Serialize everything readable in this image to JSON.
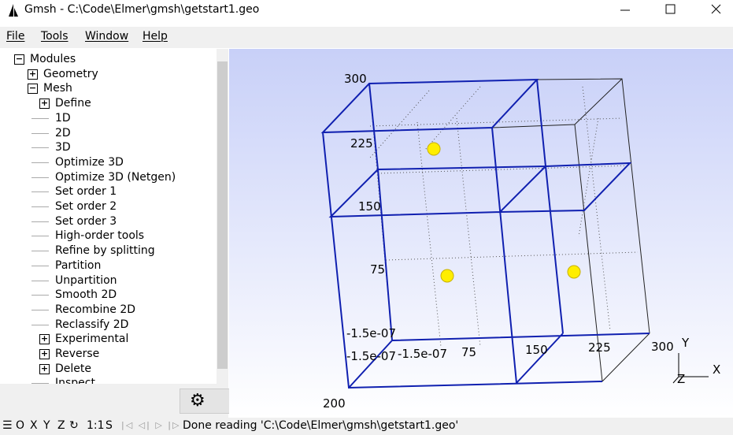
{
  "window": {
    "title": "Gmsh - C:\\Code\\Elmer\\gmsh\\getstart1.geo"
  },
  "menu": [
    "File",
    "Tools",
    "Window",
    "Help"
  ],
  "tree": [
    "Modules",
    "Geometry",
    "Mesh",
    "Define",
    "1D",
    "2D",
    "3D",
    "Optimize 3D",
    "Optimize 3D (Netgen)",
    "Set order 1",
    "Set order 2",
    "Set order 3",
    "High-order tools",
    "Refine by splitting",
    "Partition",
    "Unpartition",
    "Smooth 2D",
    "Recombine 2D",
    "Reclassify 2D",
    "Experimental",
    "Reverse",
    "Delete",
    "Inspect"
  ],
  "viewport": {
    "y_labels": [
      "300",
      "225",
      "150",
      "75",
      "-1.5e-07"
    ],
    "x_labels": [
      "-1.5e-07",
      "-1.5e-07",
      "75",
      "150",
      "225",
      "300"
    ],
    "z_label": "200",
    "axes": [
      "Y",
      "X",
      "Z"
    ]
  },
  "status": {
    "buttons": [
      "O",
      "X",
      "Y",
      "Z",
      "1:1",
      "S"
    ],
    "message": "Done reading 'C:\\Code\\Elmer\\gmsh\\getstart1.geo'"
  }
}
